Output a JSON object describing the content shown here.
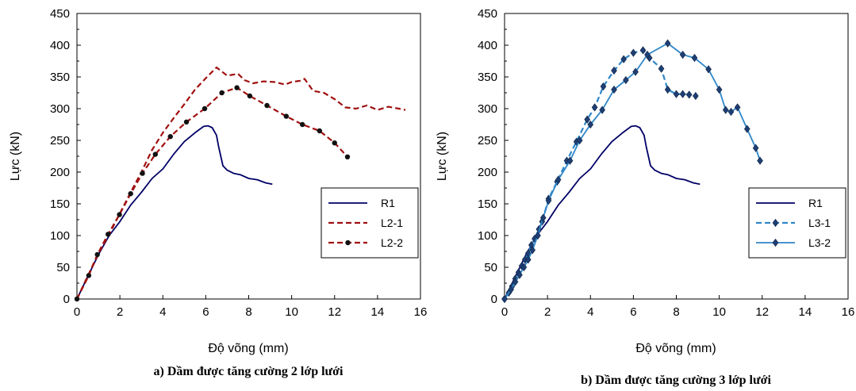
{
  "chart_data": [
    {
      "type": "line",
      "caption": "a) Dầm được tăng cường 2 lớp lưới",
      "xlabel": "Độ võng (mm)",
      "ylabel": "Lực (kN)",
      "xlim": [
        0,
        16
      ],
      "ylim": [
        0,
        450
      ],
      "xticks": [
        0,
        2,
        4,
        6,
        8,
        10,
        12,
        14,
        16
      ],
      "yticks": [
        0,
        50,
        100,
        150,
        200,
        250,
        300,
        350,
        400,
        450
      ],
      "legend_position": "right",
      "series": [
        {
          "name": "R1",
          "color": "#000066",
          "style": "solid",
          "marker": "none",
          "points": [
            [
              0,
              0
            ],
            [
              0.5,
              35
            ],
            [
              1,
              70
            ],
            [
              1.5,
              100
            ],
            [
              2,
              122
            ],
            [
              2.5,
              148
            ],
            [
              3,
              168
            ],
            [
              3.5,
              190
            ],
            [
              4,
              205
            ],
            [
              4.5,
              228
            ],
            [
              5,
              248
            ],
            [
              5.5,
              262
            ],
            [
              5.9,
              272
            ],
            [
              6.1,
              273
            ],
            [
              6.3,
              270
            ],
            [
              6.5,
              258
            ],
            [
              6.6,
              240
            ],
            [
              6.8,
              210
            ],
            [
              7,
              203
            ],
            [
              7.3,
              198
            ],
            [
              7.6,
              196
            ],
            [
              8,
              190
            ],
            [
              8.4,
              188
            ],
            [
              8.8,
              183
            ],
            [
              9.1,
              181
            ]
          ]
        },
        {
          "name": "L2-1",
          "color": "#a01010",
          "style": "dashed",
          "marker": "none",
          "points": [
            [
              0,
              0
            ],
            [
              0.5,
              36
            ],
            [
              1,
              72
            ],
            [
              1.5,
              102
            ],
            [
              2,
              135
            ],
            [
              2.5,
              168
            ],
            [
              3,
              200
            ],
            [
              3.5,
              235
            ],
            [
              4,
              262
            ],
            [
              4.5,
              285
            ],
            [
              5,
              307
            ],
            [
              5.5,
              330
            ],
            [
              6,
              348
            ],
            [
              6.5,
              365
            ],
            [
              7,
              352
            ],
            [
              7.5,
              355
            ],
            [
              7.8,
              345
            ],
            [
              8.2,
              340
            ],
            [
              8.7,
              343
            ],
            [
              9.2,
              342
            ],
            [
              9.7,
              338
            ],
            [
              10,
              342
            ],
            [
              10.4,
              344
            ],
            [
              10.6,
              347
            ],
            [
              11,
              328
            ],
            [
              11.5,
              325
            ],
            [
              12,
              315
            ],
            [
              12.5,
              302
            ],
            [
              13,
              300
            ],
            [
              13.5,
              305
            ],
            [
              14,
              298
            ],
            [
              14.5,
              303
            ],
            [
              15,
              300
            ],
            [
              15.3,
              298
            ]
          ]
        },
        {
          "name": "L2-2",
          "color": "#a01010",
          "style": "dashed",
          "marker": "dot",
          "points": [
            [
              0,
              0
            ],
            [
              0.55,
              37
            ],
            [
              0.95,
              70
            ],
            [
              1.45,
              102
            ],
            [
              1.98,
              133
            ],
            [
              2.5,
              166
            ],
            [
              3.05,
              198
            ],
            [
              3.65,
              228
            ],
            [
              4.35,
              256
            ],
            [
              5.1,
              279
            ],
            [
              5.95,
              300
            ],
            [
              6.75,
              325
            ],
            [
              7.45,
              333
            ],
            [
              8.05,
              320
            ],
            [
              8.85,
              305
            ],
            [
              9.75,
              288
            ],
            [
              10.5,
              275
            ],
            [
              11.3,
              265
            ],
            [
              12,
              246
            ],
            [
              12.6,
              224
            ]
          ]
        }
      ]
    },
    {
      "type": "line",
      "caption": "b) Dầm được tăng cường 3 lớp lưới",
      "xlabel": "Độ võng (mm)",
      "ylabel": "Lực (kN)",
      "xlim": [
        0,
        16
      ],
      "ylim": [
        0,
        450
      ],
      "xticks": [
        0,
        2,
        4,
        6,
        8,
        10,
        12,
        14,
        16
      ],
      "yticks": [
        0,
        50,
        100,
        150,
        200,
        250,
        300,
        350,
        400,
        450
      ],
      "legend_position": "right",
      "series": [
        {
          "name": "R1",
          "color": "#000066",
          "style": "solid",
          "marker": "none",
          "points": [
            [
              0,
              0
            ],
            [
              0.5,
              35
            ],
            [
              1,
              70
            ],
            [
              1.5,
              100
            ],
            [
              2,
              122
            ],
            [
              2.5,
              148
            ],
            [
              3,
              168
            ],
            [
              3.5,
              190
            ],
            [
              4,
              205
            ],
            [
              4.5,
              228
            ],
            [
              5,
              248
            ],
            [
              5.5,
              262
            ],
            [
              5.9,
              272
            ],
            [
              6.1,
              273
            ],
            [
              6.3,
              270
            ],
            [
              6.5,
              258
            ],
            [
              6.6,
              240
            ],
            [
              6.8,
              210
            ],
            [
              7,
              203
            ],
            [
              7.3,
              198
            ],
            [
              7.6,
              196
            ],
            [
              8,
              190
            ],
            [
              8.4,
              188
            ],
            [
              8.8,
              183
            ],
            [
              9.1,
              181
            ]
          ]
        },
        {
          "name": "L3-1",
          "color": "#2e86c8",
          "style": "dashed",
          "marker": "diamond",
          "points": [
            [
              0,
              0
            ],
            [
              0.2,
              10
            ],
            [
              0.35,
              20
            ],
            [
              0.5,
              32
            ],
            [
              0.65,
              42
            ],
            [
              0.8,
              52
            ],
            [
              0.95,
              62
            ],
            [
              1.1,
              72
            ],
            [
              1.25,
              85
            ],
            [
              1.4,
              95
            ],
            [
              1.6,
              110
            ],
            [
              1.75,
              122
            ],
            [
              2.05,
              158
            ],
            [
              2.45,
              185
            ],
            [
              2.9,
              218
            ],
            [
              3.35,
              248
            ],
            [
              3.85,
              283
            ],
            [
              4.2,
              302
            ],
            [
              4.6,
              335
            ],
            [
              5.1,
              360
            ],
            [
              5.55,
              378
            ],
            [
              6,
              388
            ],
            [
              6.45,
              392
            ],
            [
              6.75,
              380
            ],
            [
              7.3,
              363
            ],
            [
              7.6,
              330
            ],
            [
              8,
              323
            ],
            [
              8.3,
              323
            ],
            [
              8.6,
              322
            ],
            [
              8.9,
              320
            ]
          ]
        },
        {
          "name": "L3-2",
          "color": "#2e86c8",
          "style": "solid",
          "marker": "diamond",
          "points": [
            [
              0,
              0
            ],
            [
              0.3,
              15
            ],
            [
              0.5,
              27
            ],
            [
              0.7,
              38
            ],
            [
              0.9,
              50
            ],
            [
              1.1,
              62
            ],
            [
              1.3,
              77
            ],
            [
              1.55,
              100
            ],
            [
              1.8,
              128
            ],
            [
              2.05,
              155
            ],
            [
              2.5,
              188
            ],
            [
              3.05,
              218
            ],
            [
              3.5,
              250
            ],
            [
              4,
              275
            ],
            [
              4.55,
              298
            ],
            [
              5.1,
              330
            ],
            [
              5.65,
              345
            ],
            [
              6.1,
              358
            ],
            [
              6.65,
              385
            ],
            [
              7.6,
              403
            ],
            [
              8.3,
              385
            ],
            [
              8.85,
              380
            ],
            [
              9.5,
              362
            ],
            [
              10,
              330
            ],
            [
              10.3,
              298
            ],
            [
              10.55,
              295
            ],
            [
              10.85,
              302
            ],
            [
              11.3,
              268
            ],
            [
              11.7,
              238
            ],
            [
              11.9,
              218
            ]
          ]
        }
      ]
    }
  ]
}
